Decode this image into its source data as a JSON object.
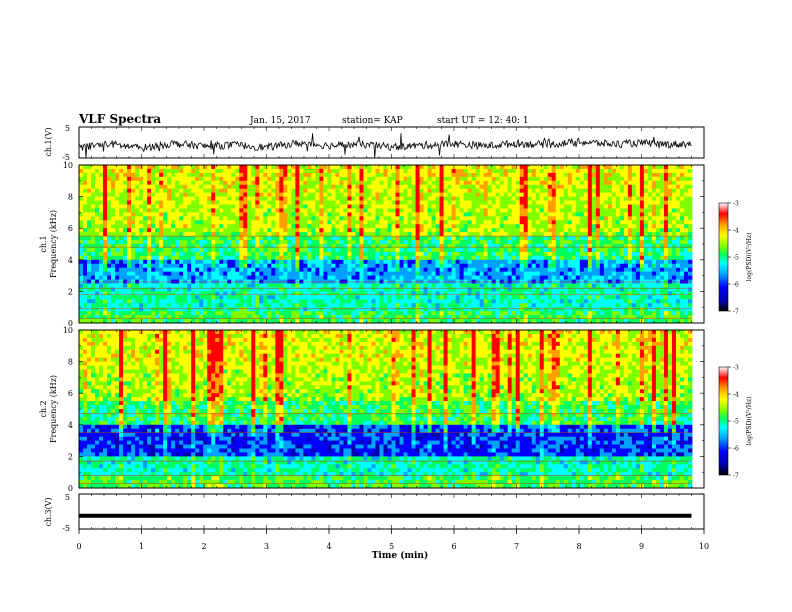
{
  "header": {
    "title": "VLF Spectra",
    "date": "Jan. 15, 2017",
    "station": "station= KAP",
    "start_time": "start  UT =  12: 40: 1"
  },
  "chart_data": [
    {
      "panel": "ch1-waveform",
      "type": "line",
      "ylabel": "ch.1(V)",
      "ylim": [
        -5,
        5
      ],
      "yticks": [
        "5",
        "-5"
      ],
      "xlim": [
        0,
        10
      ],
      "x": [
        0,
        0.5,
        1,
        1.5,
        2,
        2.5,
        3,
        3.5,
        4,
        4.5,
        5,
        5.5,
        6,
        6.5,
        7,
        7.5,
        8,
        8.5,
        9,
        9.5,
        9.8
      ],
      "y": [
        -1.5,
        -0.5,
        -1.8,
        -0.3,
        -1.2,
        -0.8,
        -1.6,
        -0.2,
        -1.0,
        -0.6,
        -1.4,
        -0.9,
        -0.4,
        -1.1,
        -0.3,
        -0.7,
        0.2,
        -0.5,
        -0.2,
        -0.6,
        -0.4
      ]
    },
    {
      "panel": "ch1-spectrogram",
      "type": "heatmap",
      "ylabel": "ch.1\nFrequency  (kHz)",
      "ylim": [
        0,
        10
      ],
      "yticks": [
        "0",
        "2",
        "4",
        "6",
        "8",
        "10"
      ],
      "xlim": [
        0,
        10
      ],
      "colorbar": {
        "label": "log(PSD)(V²/Hz)",
        "range": [
          -7,
          -3
        ],
        "ticks": [
          "-3",
          "-4",
          "-5",
          "-6",
          "-7"
        ]
      }
    },
    {
      "panel": "ch2-spectrogram",
      "type": "heatmap",
      "ylabel": "ch.2\nFrequency  (kHz)",
      "ylim": [
        0,
        10
      ],
      "yticks": [
        "0",
        "2",
        "4",
        "6",
        "8",
        "10"
      ],
      "xlim": [
        0,
        10
      ],
      "colorbar": {
        "label": "log(PSD)(V²/Hz)",
        "range": [
          -7,
          -3
        ],
        "ticks": [
          "-3",
          "-4",
          "-5",
          "-6",
          "-7"
        ]
      }
    },
    {
      "panel": "ch3-waveform",
      "type": "line",
      "ylabel": "ch.3(V)",
      "ylim": [
        -5,
        5
      ],
      "yticks": [
        "5",
        "-5"
      ],
      "xlim": [
        0,
        9.8
      ],
      "x": [
        0,
        9.8
      ],
      "y": [
        -1.2,
        -1.2
      ]
    }
  ],
  "xaxis": {
    "label": "Time  (min)",
    "ticks": [
      "0",
      "1",
      "2",
      "3",
      "4",
      "5",
      "6",
      "7",
      "8",
      "9",
      "10"
    ]
  },
  "colors": {
    "colormap": [
      "#000000",
      "#0000b0",
      "#0000ff",
      "#00a0ff",
      "#00ffff",
      "#00ff60",
      "#80ff00",
      "#ffff00",
      "#ffa000",
      "#ff0000",
      "#ffffff"
    ]
  }
}
